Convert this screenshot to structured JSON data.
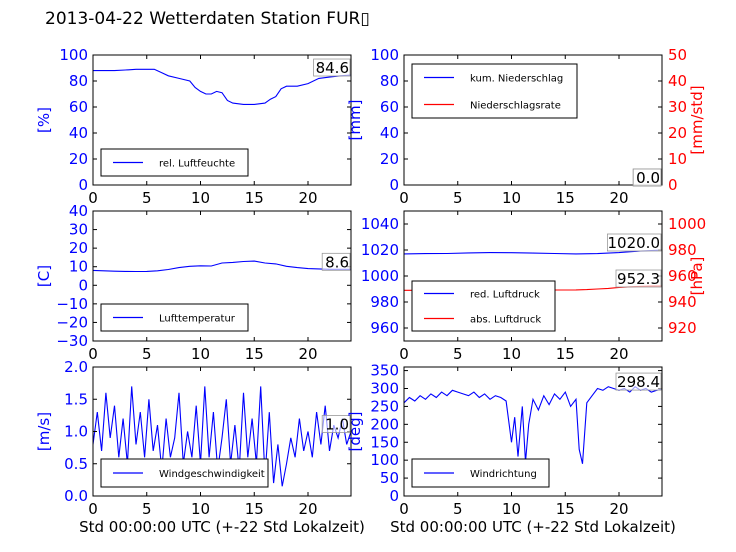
{
  "page_title": "2013-04-22 Wetterdaten Station FUR▯",
  "colors": {
    "left_axis": "#0000ff",
    "right_axis": "#ff0000",
    "ink": "#000000"
  },
  "chart_data": [
    {
      "id": "humidity",
      "type": "line",
      "title": "",
      "xlabel": "",
      "ylabel": "[%]",
      "xlim": [
        0,
        24
      ],
      "ylim": [
        0,
        100
      ],
      "xticks": [
        0,
        5,
        10,
        15,
        20
      ],
      "yticks": [
        0,
        20,
        40,
        60,
        80,
        100
      ],
      "x_tick_labels": [
        "0",
        "5",
        "10",
        "15",
        "20"
      ],
      "y_tick_labels": [
        "0",
        "20",
        "40",
        "60",
        "80",
        "100"
      ],
      "series": [
        {
          "name": "rel. Luftfeuchte",
          "color": "#0000ff",
          "axis": "left",
          "x": [
            0,
            1,
            2,
            3,
            4,
            5,
            5.7,
            6.5,
            7,
            8,
            9,
            9.5,
            10,
            10.5,
            11,
            11.5,
            12,
            12.5,
            13,
            14,
            15,
            16,
            16.5,
            17,
            17.5,
            18,
            19,
            20,
            21,
            22,
            23,
            24
          ],
          "y": [
            88,
            88,
            88,
            88.5,
            89,
            89,
            89,
            86,
            84,
            82,
            80,
            75,
            72,
            70,
            70,
            72,
            71,
            65,
            63,
            62,
            62,
            63,
            66,
            68,
            74,
            76,
            76,
            78,
            82,
            83,
            84,
            84.6
          ]
        }
      ],
      "legend": {
        "position": "lower-left"
      },
      "annotation": {
        "text": "84.6",
        "x": 24,
        "y": 84.6
      }
    },
    {
      "id": "precip",
      "type": "line",
      "title": "",
      "xlabel": "",
      "ylabel": "[mm]",
      "y2label": "[mm/std]",
      "xlim": [
        0,
        24
      ],
      "ylim": [
        0,
        100
      ],
      "y2lim": [
        0,
        50
      ],
      "xticks": [
        0,
        5,
        10,
        15,
        20
      ],
      "yticks": [
        0,
        20,
        40,
        60,
        80,
        100
      ],
      "y2ticks": [
        0,
        10,
        20,
        30,
        40,
        50
      ],
      "x_tick_labels": [
        "0",
        "5",
        "10",
        "15",
        "20"
      ],
      "y_tick_labels": [
        "0",
        "20",
        "40",
        "60",
        "80",
        "100"
      ],
      "y2_tick_labels": [
        "0",
        "10",
        "20",
        "30",
        "40",
        "50"
      ],
      "series": [
        {
          "name": "kum. Niederschlag",
          "color": "#0000ff",
          "axis": "left",
          "x": [
            0,
            24
          ],
          "y": [
            0,
            0
          ]
        },
        {
          "name": "Niederschlagsrate",
          "color": "#ff0000",
          "axis": "right",
          "x": [
            0,
            24
          ],
          "y": [
            0,
            0
          ]
        }
      ],
      "legend": {
        "position": "upper-left"
      },
      "annotation": {
        "text": "0.0",
        "x": 24,
        "y": 0
      },
      "annotation2": {
        "text": "0.0",
        "x": 24,
        "y": 0
      }
    },
    {
      "id": "temperature",
      "type": "line",
      "title": "",
      "xlabel": "",
      "ylabel": "[C]",
      "xlim": [
        0,
        24
      ],
      "ylim": [
        -30,
        40
      ],
      "xticks": [
        0,
        5,
        10,
        15,
        20
      ],
      "yticks": [
        -30,
        -20,
        -10,
        0,
        10,
        20,
        30,
        40
      ],
      "x_tick_labels": [
        "0",
        "5",
        "10",
        "15",
        "20"
      ],
      "y_tick_labels": [
        "−30",
        "−20",
        "−10",
        "0",
        "10",
        "20",
        "30",
        "40"
      ],
      "series": [
        {
          "name": "Lufttemperatur",
          "color": "#0000ff",
          "axis": "left",
          "x": [
            0,
            1,
            2,
            3,
            4,
            5,
            6,
            7,
            8,
            9,
            10,
            11,
            12,
            13,
            14,
            15,
            16,
            17,
            18,
            19,
            20,
            21,
            22,
            23,
            24
          ],
          "y": [
            8,
            7.8,
            7.6,
            7.5,
            7.4,
            7.5,
            7.8,
            8.5,
            9.5,
            10.2,
            10.5,
            10.4,
            12,
            12.3,
            12.8,
            13,
            12,
            11.5,
            10.2,
            9.5,
            9,
            8.8,
            8.6,
            8.6,
            8.6
          ]
        }
      ],
      "legend": {
        "position": "lower-left"
      },
      "annotation": {
        "text": "8.6",
        "x": 24,
        "y": 8.6
      }
    },
    {
      "id": "pressure",
      "type": "line",
      "title": "",
      "xlabel": "",
      "ylabel": "",
      "y2label": "[hPa]",
      "xlim": [
        0,
        24
      ],
      "ylim": [
        950,
        1050
      ],
      "y2lim": [
        910,
        1010
      ],
      "xticks": [
        0,
        5,
        10,
        15,
        20
      ],
      "yticks": [
        960,
        980,
        1000,
        1020,
        1040
      ],
      "y2ticks": [
        920,
        940,
        960,
        980,
        1000
      ],
      "x_tick_labels": [
        "0",
        "5",
        "10",
        "15",
        "20"
      ],
      "y_tick_labels": [
        "960",
        "980",
        "1000",
        "1020",
        "1040"
      ],
      "y2_tick_labels": [
        "920",
        "940",
        "960",
        "980",
        "1000"
      ],
      "series": [
        {
          "name": "red. Luftdruck",
          "color": "#0000ff",
          "axis": "left",
          "x": [
            0,
            2,
            4,
            6,
            8,
            10,
            12,
            14,
            16,
            18,
            20,
            22,
            24
          ],
          "y": [
            1017,
            1017.2,
            1017.3,
            1017.8,
            1018,
            1017.9,
            1017.6,
            1017.3,
            1017,
            1017.2,
            1018,
            1019.2,
            1020
          ]
        },
        {
          "name": "abs. Luftdruck",
          "color": "#ff0000",
          "axis": "right",
          "x": [
            0,
            2,
            4,
            6,
            8,
            10,
            12,
            14,
            16,
            17,
            18,
            19,
            20,
            21,
            22,
            23,
            24
          ],
          "y": [
            949,
            949,
            949.2,
            949.6,
            949.8,
            949.6,
            949.4,
            949.2,
            949.3,
            949.5,
            950,
            950.5,
            951.2,
            951.7,
            952,
            952.2,
            952.3
          ]
        }
      ],
      "legend": {
        "position": "lower-left"
      },
      "annotation": {
        "text": "1020.0",
        "x": 24,
        "y": 1020
      },
      "annotation2": {
        "text": "952.3",
        "x": 24,
        "y": 952.3
      }
    },
    {
      "id": "wind-speed",
      "type": "line",
      "title": "",
      "xlabel": "Std 00:00:00 UTC (+-22 Std Lokalzeit)",
      "ylabel": "[m/s]",
      "xlim": [
        0,
        24
      ],
      "ylim": [
        0,
        2
      ],
      "xticks": [
        0,
        5,
        10,
        15,
        20
      ],
      "yticks": [
        0,
        0.5,
        1,
        1.5,
        2
      ],
      "x_tick_labels": [
        "0",
        "5",
        "10",
        "15",
        "20"
      ],
      "y_tick_labels": [
        "0.0",
        "0.5",
        "1.0",
        "1.5",
        "2.0"
      ],
      "series": [
        {
          "name": "Windgeschwindigkeit",
          "color": "#0000ff",
          "axis": "left",
          "x": [
            0,
            0.4,
            0.8,
            1.2,
            1.6,
            2,
            2.4,
            2.8,
            3.2,
            3.6,
            4,
            4.4,
            4.8,
            5.2,
            5.6,
            6,
            6.4,
            6.8,
            7.2,
            7.6,
            8,
            8.4,
            8.8,
            9.2,
            9.6,
            10,
            10.4,
            10.8,
            11.2,
            11.6,
            12,
            12.4,
            12.8,
            13.2,
            13.6,
            14,
            14.4,
            14.8,
            15.2,
            15.6,
            16,
            16.4,
            16.8,
            17.2,
            17.6,
            18,
            18.4,
            18.8,
            19.2,
            19.6,
            20,
            20.4,
            20.8,
            21.2,
            21.6,
            22,
            22.4,
            22.8,
            23.2,
            23.6,
            24
          ],
          "y": [
            0.8,
            1.3,
            0.7,
            1.6,
            0.9,
            1.4,
            0.6,
            1.2,
            0.5,
            1.7,
            0.8,
            1.3,
            0.6,
            1.5,
            0.7,
            1.1,
            0.4,
            1.2,
            0.6,
            0.9,
            1.6,
            0.5,
            1.0,
            0.6,
            1.4,
            0.5,
            1.7,
            0.6,
            1.3,
            0.4,
            0.9,
            1.5,
            0.5,
            1.1,
            0.4,
            1.6,
            0.6,
            1.2,
            0.5,
            1.7,
            0.3,
            1.3,
            0.2,
            0.8,
            0.15,
            0.5,
            0.9,
            0.6,
            1.2,
            0.7,
            1.0,
            0.6,
            1.3,
            0.8,
            1.4,
            0.7,
            1.1,
            0.9,
            1.2,
            0.8,
            1.0
          ]
        }
      ],
      "legend": {
        "position": "lower-left"
      },
      "annotation": {
        "text": "1.0",
        "x": 24,
        "y": 1.0
      }
    },
    {
      "id": "wind-dir",
      "type": "line",
      "title": "",
      "xlabel": "Std 00:00:00 UTC (+-22 Std Lokalzeit)",
      "ylabel": "[deg]",
      "xlim": [
        0,
        24
      ],
      "ylim": [
        0,
        360
      ],
      "xticks": [
        0,
        5,
        10,
        15,
        20
      ],
      "yticks": [
        0,
        50,
        100,
        150,
        200,
        250,
        300,
        350
      ],
      "x_tick_labels": [
        "0",
        "5",
        "10",
        "15",
        "20"
      ],
      "y_tick_labels": [
        "0",
        "50",
        "100",
        "150",
        "200",
        "250",
        "300",
        "350"
      ],
      "series": [
        {
          "name": "Windrichtung",
          "color": "#0000ff",
          "axis": "left",
          "x": [
            0,
            0.5,
            1,
            1.5,
            2,
            2.5,
            3,
            3.5,
            4,
            4.5,
            5,
            5.5,
            6,
            6.5,
            7,
            7.5,
            8,
            8.5,
            9,
            9.5,
            10,
            10.3,
            10.6,
            11,
            11.3,
            11.6,
            12,
            12.5,
            13,
            13.5,
            14,
            14.5,
            15,
            15.5,
            16,
            16.3,
            16.6,
            17,
            17.5,
            18,
            18.5,
            19,
            19.5,
            20,
            20.5,
            21,
            21.5,
            22,
            22.5,
            23,
            23.5,
            24
          ],
          "y": [
            260,
            275,
            265,
            280,
            270,
            285,
            275,
            290,
            280,
            295,
            290,
            285,
            280,
            290,
            275,
            285,
            270,
            280,
            275,
            265,
            150,
            220,
            110,
            250,
            95,
            200,
            270,
            240,
            280,
            255,
            285,
            270,
            290,
            250,
            270,
            130,
            90,
            260,
            280,
            300,
            295,
            305,
            300,
            295,
            300,
            290,
            305,
            295,
            300,
            290,
            295,
            298.4
          ]
        }
      ],
      "legend": {
        "position": "lower-left"
      },
      "annotation": {
        "text": "298.4",
        "x": 24,
        "y": 298.4
      }
    }
  ]
}
